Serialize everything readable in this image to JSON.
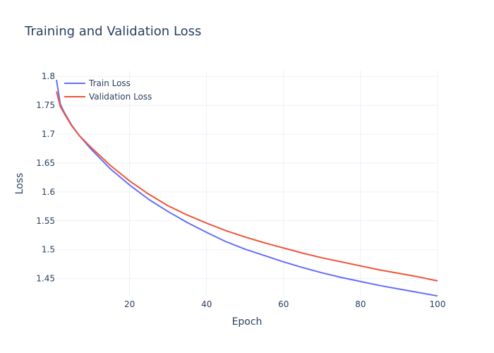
{
  "chart_data": {
    "type": "line",
    "title": "Training and Validation Loss",
    "xlabel": "Epoch",
    "ylabel": "Loss",
    "xlim": [
      1,
      100
    ],
    "ylim": [
      1.419,
      1.81
    ],
    "x_ticks": [
      20,
      40,
      60,
      80,
      100
    ],
    "y_ticks": [
      1.45,
      1.5,
      1.55,
      1.6,
      1.65,
      1.7,
      1.75,
      1.8
    ],
    "y_tick_labels": [
      "1.45",
      "1.5",
      "1.55",
      "1.6",
      "1.65",
      "1.7",
      "1.75",
      "1.8"
    ],
    "grid": true,
    "legend_position": "top-left",
    "series": [
      {
        "name": "Train Loss",
        "color": "#636efa",
        "x": [
          1,
          2,
          3,
          5,
          7,
          10,
          15,
          20,
          25,
          30,
          35,
          40,
          45,
          50,
          55,
          60,
          65,
          70,
          75,
          80,
          85,
          90,
          95,
          100
        ],
        "y": [
          1.794,
          1.752,
          1.738,
          1.715,
          1.697,
          1.674,
          1.64,
          1.612,
          1.587,
          1.566,
          1.547,
          1.53,
          1.514,
          1.501,
          1.49,
          1.479,
          1.469,
          1.46,
          1.452,
          1.445,
          1.438,
          1.432,
          1.426,
          1.42
        ]
      },
      {
        "name": "Validation Loss",
        "color": "#ef553b",
        "x": [
          1,
          2,
          3,
          5,
          7,
          10,
          15,
          20,
          25,
          30,
          35,
          40,
          45,
          50,
          55,
          60,
          65,
          70,
          75,
          80,
          85,
          90,
          95,
          100
        ],
        "y": [
          1.774,
          1.748,
          1.736,
          1.714,
          1.697,
          1.677,
          1.646,
          1.619,
          1.596,
          1.576,
          1.56,
          1.546,
          1.533,
          1.522,
          1.512,
          1.503,
          1.494,
          1.486,
          1.479,
          1.472,
          1.465,
          1.459,
          1.453,
          1.446
        ]
      }
    ]
  }
}
